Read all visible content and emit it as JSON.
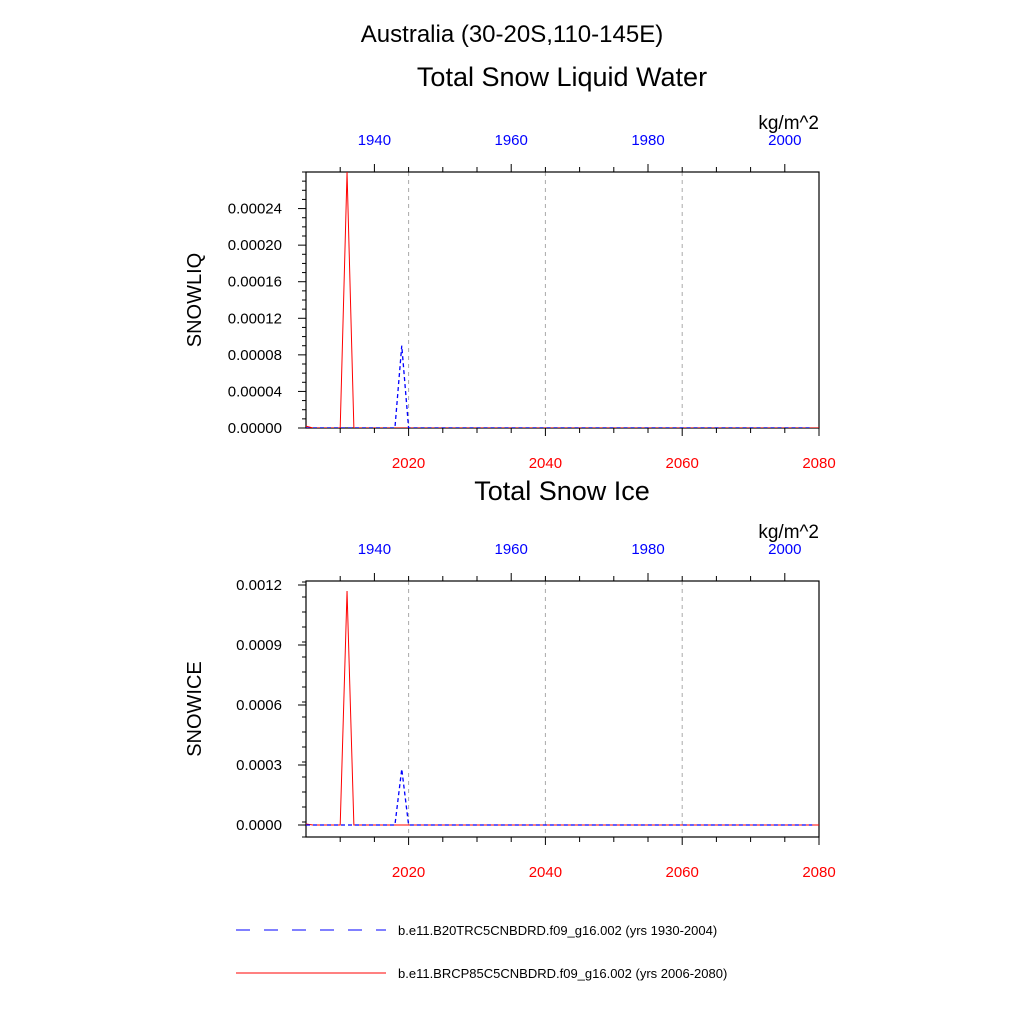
{
  "page": {
    "main_title": "Australia (30-20S,110-145E)"
  },
  "colors": {
    "historical": "#0000ff",
    "projection": "#ff0000",
    "axis": "#000000",
    "grid": "#aaaaaa"
  },
  "chart_data": [
    {
      "type": "line",
      "title": "Total Snow Liquid Water",
      "ylabel": "SNOWLIQ",
      "units": "kg/m^2",
      "ylim": [
        0,
        0.00028
      ],
      "yticks": [
        "0.00000",
        "0.00004",
        "0.00008",
        "0.00012",
        "0.00016",
        "0.00020",
        "0.00024"
      ],
      "ytick_values": [
        0,
        4e-05,
        8e-05,
        0.00012,
        0.00016,
        0.0002,
        0.00024
      ],
      "x_bottom": {
        "range": [
          2005,
          2080
        ],
        "ticks": [
          2020,
          2040,
          2060,
          2080
        ],
        "tick_color": "red"
      },
      "x_top": {
        "range": [
          1930,
          2004
        ],
        "ticks": [
          1940,
          1960,
          1980,
          2000
        ],
        "tick_color": "blue"
      },
      "grid": "vertical dashed at bottom-axis ticks",
      "series": [
        {
          "name": "b.e11.BRCP85C5CNBDRD.f09_g16.002 (yrs 2006-2080)",
          "axis": "bottom",
          "color": "red",
          "style": "solid",
          "x": [
            2005,
            2006,
            2007,
            2008,
            2009,
            2010,
            2011,
            2012,
            2013,
            2014,
            2020,
            2030,
            2040,
            2050,
            2060,
            2070,
            2080
          ],
          "y": [
            2e-06,
            0,
            0,
            0,
            0,
            0,
            0.00028,
            0,
            0,
            0,
            0,
            0,
            0,
            0,
            0,
            0,
            0
          ]
        },
        {
          "name": "b.e11.B20TRC5CNBDRD.f09_g16.002 (yrs 1930-2004)",
          "axis": "top",
          "color": "blue",
          "style": "dashed",
          "x": [
            1930,
            1940,
            1941,
            1942,
            1943,
            1944,
            1945,
            1950,
            1960,
            1980,
            2004
          ],
          "y": [
            0,
            0,
            0,
            0,
            0,
            9e-05,
            0,
            0,
            0,
            0,
            0
          ]
        }
      ]
    },
    {
      "type": "line",
      "title": "Total Snow Ice",
      "ylabel": "SNOWICE",
      "units": "kg/m^2",
      "ylim": [
        -6e-05,
        0.00122
      ],
      "yticks": [
        "0.0000",
        "0.0003",
        "0.0006",
        "0.0009",
        "0.0012"
      ],
      "ytick_values": [
        0,
        0.0003,
        0.0006,
        0.0009,
        0.0012
      ],
      "x_bottom": {
        "range": [
          2005,
          2080
        ],
        "ticks": [
          2020,
          2040,
          2060,
          2080
        ],
        "tick_color": "red"
      },
      "x_top": {
        "range": [
          1930,
          2004
        ],
        "ticks": [
          1940,
          1960,
          1980,
          2000
        ],
        "tick_color": "blue"
      },
      "grid": "vertical dashed at bottom-axis ticks",
      "series": [
        {
          "name": "b.e11.BRCP85C5CNBDRD.f09_g16.002 (yrs 2006-2080)",
          "axis": "bottom",
          "color": "red",
          "style": "solid",
          "x": [
            2005,
            2006,
            2007,
            2008,
            2009,
            2010,
            2011,
            2012,
            2013,
            2014,
            2020,
            2030,
            2040,
            2050,
            2060,
            2070,
            2080
          ],
          "y": [
            5e-06,
            0,
            0,
            0,
            0,
            0,
            0.00117,
            0,
            0,
            0,
            0,
            0,
            0,
            0,
            0,
            0,
            0
          ]
        },
        {
          "name": "b.e11.B20TRC5CNBDRD.f09_g16.002 (yrs 1930-2004)",
          "axis": "top",
          "color": "blue",
          "style": "dashed",
          "x": [
            1930,
            1940,
            1941,
            1942,
            1943,
            1944,
            1945,
            1950,
            1960,
            1980,
            2004
          ],
          "y": [
            0,
            0,
            0,
            0,
            0,
            0.00028,
            0,
            0,
            0,
            0,
            0
          ]
        }
      ]
    }
  ],
  "legend": {
    "placement": "bottom",
    "entries": [
      {
        "label": "b.e11.B20TRC5CNBDRD.f09_g16.002 (yrs 1930-2004)",
        "color": "blue",
        "style": "dashed"
      },
      {
        "label": "b.e11.BRCP85C5CNBDRD.f09_g16.002 (yrs 2006-2080)",
        "color": "red",
        "style": "solid"
      }
    ]
  }
}
